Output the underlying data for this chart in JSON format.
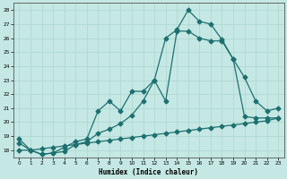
{
  "title": "",
  "xlabel": "Humidex (Indice chaleur)",
  "bg_color": "#c5e8e4",
  "line_color": "#1e7070",
  "grid_color": "#b0d8d0",
  "xlim": [
    -0.5,
    23.5
  ],
  "ylim": [
    17.5,
    28.5
  ],
  "xticks": [
    0,
    1,
    2,
    3,
    4,
    5,
    6,
    7,
    8,
    9,
    10,
    11,
    12,
    13,
    14,
    15,
    16,
    17,
    18,
    19,
    20,
    21,
    22,
    23
  ],
  "yticks": [
    18,
    19,
    20,
    21,
    22,
    23,
    24,
    25,
    26,
    27,
    28
  ],
  "line1_x": [
    0,
    1,
    2,
    3,
    4,
    5,
    6,
    7,
    8,
    9,
    10,
    11,
    12,
    13,
    14,
    15,
    16,
    17,
    18,
    19,
    20,
    21,
    22,
    23
  ],
  "line1_y": [
    18.8,
    18.0,
    17.7,
    17.8,
    18.2,
    18.6,
    18.8,
    20.8,
    21.5,
    20.8,
    22.2,
    22.2,
    23.0,
    26.0,
    26.6,
    28.0,
    27.2,
    27.0,
    25.9,
    24.5,
    23.2,
    21.5,
    20.8,
    21.0
  ],
  "line2_x": [
    0,
    1,
    2,
    3,
    4,
    5,
    6,
    7,
    8,
    9,
    10,
    11,
    12,
    13,
    14,
    15,
    16,
    17,
    18,
    19,
    20,
    21,
    22,
    23
  ],
  "line2_y": [
    18.5,
    18.0,
    17.7,
    17.8,
    17.9,
    18.4,
    18.6,
    19.2,
    19.5,
    19.9,
    20.5,
    21.5,
    23.0,
    21.5,
    26.5,
    26.5,
    26.0,
    25.8,
    25.8,
    24.5,
    20.4,
    20.3,
    20.3,
    20.3
  ],
  "line3_x": [
    0,
    1,
    2,
    3,
    4,
    5,
    6,
    7,
    8,
    9,
    10,
    11,
    12,
    13,
    14,
    15,
    16,
    17,
    18,
    19,
    20,
    21,
    22,
    23
  ],
  "line3_y": [
    18.0,
    18.0,
    18.1,
    18.2,
    18.3,
    18.4,
    18.5,
    18.6,
    18.7,
    18.8,
    18.9,
    19.0,
    19.1,
    19.2,
    19.3,
    19.4,
    19.5,
    19.6,
    19.7,
    19.8,
    19.9,
    20.0,
    20.1,
    20.3
  ]
}
